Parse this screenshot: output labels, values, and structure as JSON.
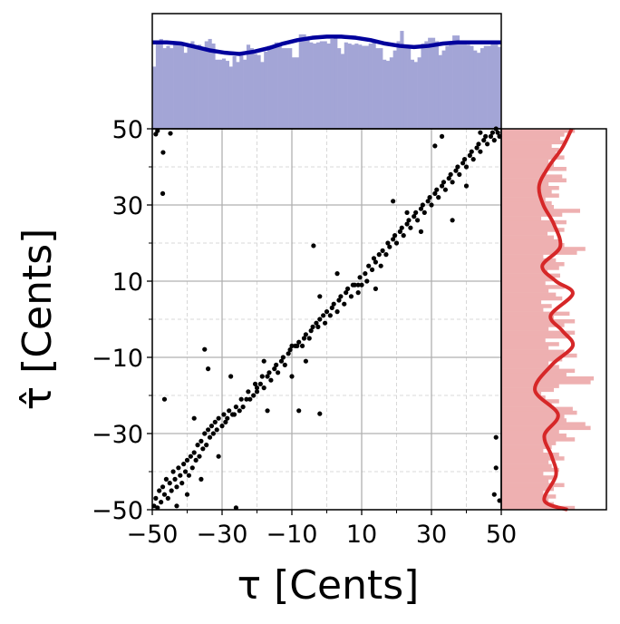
{
  "chart_data": [
    {
      "type": "scatter",
      "xlabel": "τ [Cents]",
      "ylabel": "τ̂ [Cents]",
      "xlim": [
        -50,
        50
      ],
      "ylim": [
        -50,
        50
      ],
      "xticks": [
        "−50",
        "−30",
        "−10",
        "10",
        "30",
        "50"
      ],
      "yticks": [
        "−50",
        "−30",
        "−10",
        "10",
        "30",
        "50"
      ],
      "xtick_values": [
        -50,
        -30,
        -10,
        10,
        30,
        50
      ],
      "ytick_values": [
        -50,
        -30,
        -10,
        10,
        30,
        50
      ],
      "grid": {
        "major": "solid",
        "minor": "dashed",
        "minor_values": [
          -40,
          -20,
          0,
          20,
          40
        ]
      },
      "color": "#000000",
      "points": [
        [
          -49.5,
          -49
        ],
        [
          -49,
          -47
        ],
        [
          -48.5,
          -49.5
        ],
        [
          -48,
          -45
        ],
        [
          -47.5,
          -48
        ],
        [
          -47,
          -44
        ],
        [
          -46.5,
          -46
        ],
        [
          -46,
          -42
        ],
        [
          -45.5,
          -47
        ],
        [
          -45,
          -43
        ],
        [
          -44.5,
          -45
        ],
        [
          -44,
          -40
        ],
        [
          -43.5,
          -42
        ],
        [
          -43,
          -44
        ],
        [
          -42.5,
          -39
        ],
        [
          -42,
          -41
        ],
        [
          -41.5,
          -43
        ],
        [
          -41,
          -38
        ],
        [
          -40.5,
          -40
        ],
        [
          -40,
          -37
        ],
        [
          -39.5,
          -41
        ],
        [
          -39,
          -36
        ],
        [
          -38.5,
          -39
        ],
        [
          -38,
          -35
        ],
        [
          -37.5,
          -37
        ],
        [
          -37,
          -33
        ],
        [
          -36.5,
          -36
        ],
        [
          -36,
          -32
        ],
        [
          -35.5,
          -34
        ],
        [
          -35,
          -30
        ],
        [
          -34.5,
          -33
        ],
        [
          -34,
          -29
        ],
        [
          -33.5,
          -31
        ],
        [
          -33,
          -28
        ],
        [
          -32.5,
          -30
        ],
        [
          -32,
          -27
        ],
        [
          -31.5,
          -29
        ],
        [
          -31,
          -26
        ],
        [
          -30,
          -28
        ],
        [
          -29.5,
          -25
        ],
        [
          -29,
          -27
        ],
        [
          -28.5,
          -26
        ],
        [
          -28,
          -24
        ],
        [
          -27,
          -25
        ],
        [
          -26.5,
          -25
        ],
        [
          -26,
          -23
        ],
        [
          -25,
          -24
        ],
        [
          -24.5,
          -21
        ],
        [
          -24,
          -23
        ],
        [
          -23,
          -21
        ],
        [
          -22.5,
          -19
        ],
        [
          -22,
          -21
        ],
        [
          -21,
          -20
        ],
        [
          -20.5,
          -17
        ],
        [
          -20,
          -19
        ],
        [
          -19,
          -17
        ],
        [
          -18.5,
          -15
        ],
        [
          -18,
          -18
        ],
        [
          -17,
          -15
        ],
        [
          -16.5,
          -14
        ],
        [
          -16,
          -16
        ],
        [
          -15,
          -13
        ],
        [
          -14.5,
          -12
        ],
        [
          -14,
          -14
        ],
        [
          -13,
          -11
        ],
        [
          -12.5,
          -10
        ],
        [
          -12,
          -12
        ],
        [
          -11,
          -9
        ],
        [
          -10.5,
          -8
        ],
        [
          -10,
          -7
        ],
        [
          -9,
          -7
        ],
        [
          -8.5,
          -7
        ],
        [
          -8,
          -6
        ],
        [
          -7,
          -7
        ],
        [
          -6.5,
          -5
        ],
        [
          -6,
          -4
        ],
        [
          -5,
          -5
        ],
        [
          -4.5,
          -3
        ],
        [
          -4,
          -2
        ],
        [
          -3,
          -1
        ],
        [
          -2.5,
          -2
        ],
        [
          -2,
          0
        ],
        [
          -1,
          1
        ],
        [
          -0.5,
          -1
        ],
        [
          0,
          2
        ],
        [
          1,
          1
        ],
        [
          1.5,
          3
        ],
        [
          2,
          4
        ],
        [
          3,
          2
        ],
        [
          3.5,
          5
        ],
        [
          4,
          6
        ],
        [
          5,
          4
        ],
        [
          5.5,
          7
        ],
        [
          6,
          8
        ],
        [
          7,
          6
        ],
        [
          7.5,
          9
        ],
        [
          8,
          9
        ],
        [
          9,
          9
        ],
        [
          9.5,
          11
        ],
        [
          10,
          9
        ],
        [
          11,
          12
        ],
        [
          11.5,
          10
        ],
        [
          12,
          14
        ],
        [
          13,
          13
        ],
        [
          13.5,
          16
        ],
        [
          14,
          15
        ],
        [
          15,
          17
        ],
        [
          15.5,
          14
        ],
        [
          16,
          18
        ],
        [
          17,
          17
        ],
        [
          17.5,
          20
        ],
        [
          18,
          19
        ],
        [
          19,
          21
        ],
        [
          19.5,
          22
        ],
        [
          20,
          20
        ],
        [
          21,
          23
        ],
        [
          21.5,
          24
        ],
        [
          22,
          22
        ],
        [
          23,
          25
        ],
        [
          23.5,
          26
        ],
        [
          24,
          24
        ],
        [
          25,
          27
        ],
        [
          25.5,
          28
        ],
        [
          26,
          26
        ],
        [
          27,
          29
        ],
        [
          27.5,
          30
        ],
        [
          28,
          28
        ],
        [
          29,
          31
        ],
        [
          29.5,
          32
        ],
        [
          30,
          30
        ],
        [
          31,
          33
        ],
        [
          31.5,
          34
        ],
        [
          32,
          32
        ],
        [
          33,
          35
        ],
        [
          33.5,
          36
        ],
        [
          34,
          34
        ],
        [
          35,
          37
        ],
        [
          35.5,
          38
        ],
        [
          36,
          36
        ],
        [
          37,
          39
        ],
        [
          37.5,
          40
        ],
        [
          38,
          38
        ],
        [
          39,
          41
        ],
        [
          39.5,
          42
        ],
        [
          40,
          40
        ],
        [
          41,
          43
        ],
        [
          41.5,
          44
        ],
        [
          42,
          42
        ],
        [
          43,
          45
        ],
        [
          43.5,
          46
        ],
        [
          44,
          44
        ],
        [
          45,
          47
        ],
        [
          45.5,
          48
        ],
        [
          46,
          46
        ],
        [
          47,
          48
        ],
        [
          47.5,
          49
        ],
        [
          48,
          47
        ],
        [
          49,
          49
        ],
        [
          49.5,
          48
        ],
        [
          48.5,
          50
        ],
        [
          -49,
          48.6
        ],
        [
          -44.8,
          48.8
        ],
        [
          -47,
          33
        ],
        [
          -46.9,
          43.8
        ],
        [
          -48.5,
          49.5
        ],
        [
          -3.8,
          19.3
        ],
        [
          -35,
          -7.9
        ],
        [
          -8,
          -24
        ],
        [
          -2,
          -24.8
        ],
        [
          -46.5,
          -21
        ],
        [
          -38,
          -26
        ],
        [
          -34,
          -13
        ],
        [
          -27.5,
          -15
        ],
        [
          -26,
          -49.5
        ],
        [
          33,
          48
        ],
        [
          31,
          45.5
        ],
        [
          19,
          31
        ],
        [
          23,
          28
        ],
        [
          36,
          26
        ],
        [
          48.5,
          -31
        ],
        [
          48.5,
          -39
        ],
        [
          48,
          -46
        ],
        [
          49.5,
          -47.6
        ],
        [
          -20,
          -18
        ],
        [
          -17,
          -24
        ],
        [
          -10,
          -15
        ],
        [
          9,
          7
        ],
        [
          14,
          8
        ],
        [
          3,
          12
        ],
        [
          -43,
          -49
        ],
        [
          -40,
          -46
        ],
        [
          -36,
          -42
        ],
        [
          -31,
          -36
        ],
        [
          -18,
          -11
        ],
        [
          -6,
          -11
        ],
        [
          27,
          23
        ],
        [
          40,
          35
        ],
        [
          44,
          49
        ],
        [
          -2,
          6
        ]
      ]
    },
    {
      "type": "bar",
      "orientation": "vertical",
      "position": "top-marginal",
      "color": "#a3a5d6",
      "kde_color": "#00009c",
      "ylim": [
        0,
        100
      ],
      "bin_range": [
        -50,
        50
      ],
      "values": [
        54,
        76,
        78,
        70,
        72,
        70,
        75,
        73,
        74,
        66,
        73,
        76,
        72,
        73,
        70,
        76,
        78,
        74,
        60,
        60,
        61,
        59,
        54,
        63,
        58,
        65,
        60,
        73,
        70,
        65,
        64,
        58,
        67,
        72,
        70,
        75,
        73,
        70,
        70,
        70,
        62,
        62,
        82,
        82,
        77,
        75,
        74,
        75,
        76,
        76,
        74,
        78,
        80,
        70,
        65,
        75,
        74,
        73,
        74,
        73,
        72,
        72,
        74,
        77,
        70,
        70,
        60,
        59,
        62,
        68,
        76,
        85,
        72,
        72,
        60,
        58,
        62,
        74,
        76,
        79,
        79,
        76,
        64,
        68,
        72,
        75,
        81,
        81,
        74,
        74,
        73,
        72,
        68,
        66,
        70,
        72,
        72,
        76,
        74,
        71
      ],
      "kde": [
        75,
        75,
        74,
        71,
        68,
        66,
        65,
        67,
        70,
        74,
        77,
        79,
        80,
        80,
        79,
        77,
        74,
        72,
        71,
        72,
        74,
        75,
        75,
        75,
        75
      ]
    },
    {
      "type": "bar",
      "orientation": "horizontal",
      "position": "right-marginal",
      "color": "#eeb0b1",
      "kde_color": "#d62728",
      "xlim": [
        0,
        100
      ],
      "bin_range": [
        -50,
        50
      ],
      "values": [
        70,
        50,
        45,
        52,
        40,
        50,
        60,
        45,
        52,
        40,
        55,
        48,
        45,
        60,
        55,
        40,
        48,
        52,
        70,
        62,
        55,
        85,
        80,
        62,
        60,
        72,
        68,
        48,
        55,
        42,
        38,
        50,
        55,
        85,
        88,
        62,
        70,
        55,
        45,
        58,
        72,
        60,
        45,
        55,
        42,
        65,
        70,
        45,
        60,
        70,
        50,
        65,
        40,
        48,
        38,
        58,
        52,
        45,
        60,
        42,
        50,
        56,
        44,
        55,
        60,
        52,
        40,
        72,
        80,
        60,
        56,
        50,
        44,
        60,
        50,
        62,
        38,
        58,
        75,
        50,
        48,
        42,
        55,
        48,
        55,
        45,
        62,
        58,
        40,
        62,
        50,
        45,
        60,
        52,
        55,
        48,
        62,
        56,
        60,
        70
      ],
      "kde_tau": [
        50,
        45,
        40,
        35,
        30,
        25,
        19,
        14,
        10,
        6.7,
        1,
        -3,
        -7,
        -12,
        -18.6,
        -25,
        -30.5,
        -36,
        -41,
        -47.6,
        -50
      ],
      "kde": [
        67,
        58,
        45,
        36,
        40,
        50,
        56,
        39,
        52,
        68,
        47,
        58,
        68,
        48,
        32,
        54,
        41,
        48,
        52,
        41,
        63
      ]
    }
  ]
}
